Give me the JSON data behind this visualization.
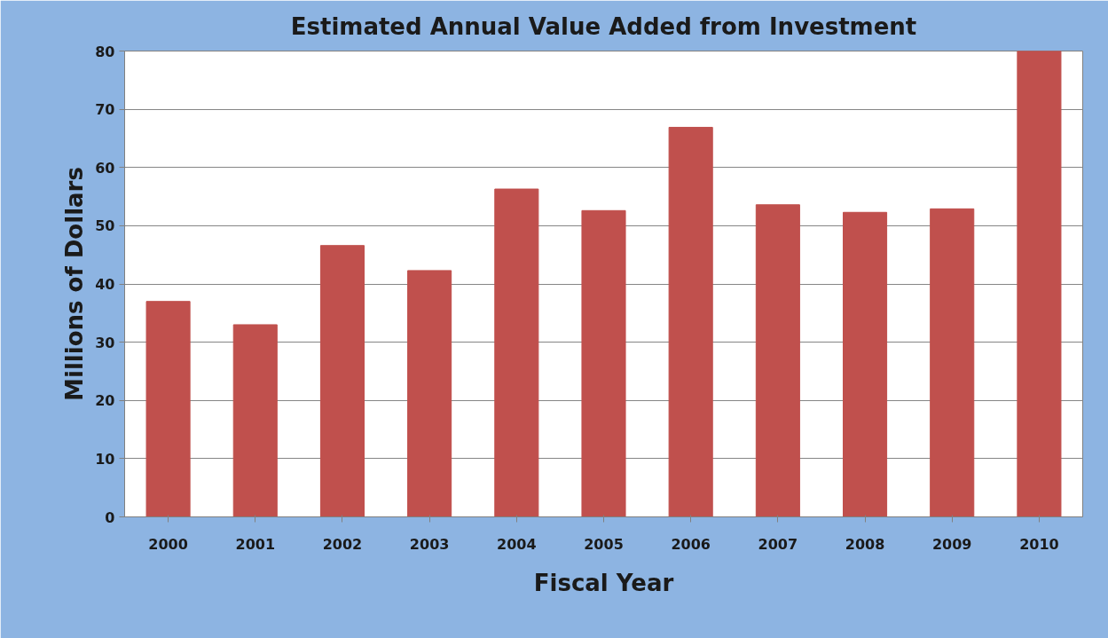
{
  "chart_data": {
    "type": "bar",
    "title": "Estimated Annual Value Added from Investment",
    "xlabel": "Fiscal Year",
    "ylabel": "Millions of Dollars",
    "categories": [
      "2000",
      "2001",
      "2002",
      "2003",
      "2004",
      "2005",
      "2006",
      "2007",
      "2008",
      "2009",
      "2010"
    ],
    "values": [
      37.0,
      33.0,
      46.6,
      42.3,
      56.3,
      52.6,
      66.9,
      53.6,
      52.3,
      52.9,
      80
    ],
    "color": "#c0504d",
    "ylim": [
      0,
      80
    ],
    "yticks": [
      0,
      10,
      20,
      30,
      40,
      50,
      60,
      70,
      80
    ],
    "grid": "y"
  }
}
